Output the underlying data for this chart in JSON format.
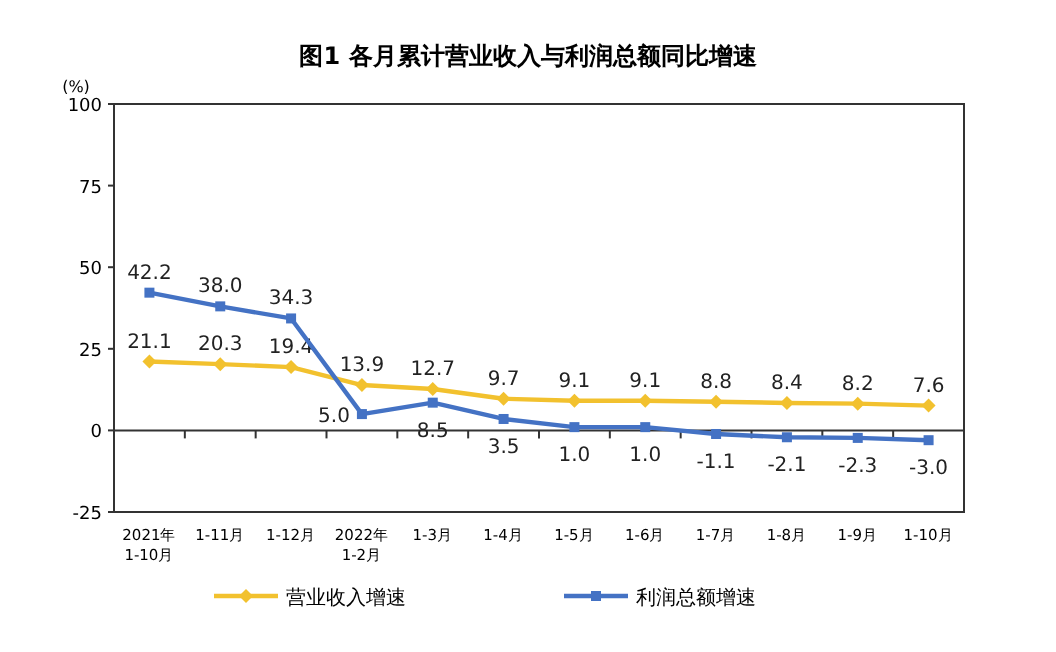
{
  "chart_data": {
    "type": "line",
    "title": "图1  各月累计营业收入与利润总额同比增速",
    "ylabel": "(%)",
    "categories": [
      "2021年\n1-10月",
      "1-11月",
      "1-12月",
      "2022年\n1-2月",
      "1-3月",
      "1-4月",
      "1-5月",
      "1-6月",
      "1-7月",
      "1-8月",
      "1-9月",
      "1-10月"
    ],
    "series": [
      {
        "name": "营业收入增速",
        "color": "#f2c12e",
        "marker": "diamond",
        "values": [
          21.1,
          20.3,
          19.4,
          13.9,
          12.7,
          9.7,
          9.1,
          9.1,
          8.8,
          8.4,
          8.2,
          7.6
        ],
        "value_labels": [
          "21.1",
          "20.3",
          "19.4",
          "13.9",
          "12.7",
          "9.7",
          "9.1",
          "9.1",
          "8.8",
          "8.4",
          "8.2",
          "7.6"
        ]
      },
      {
        "name": "利润总额增速",
        "color": "#4472c4",
        "marker": "square",
        "values": [
          42.2,
          38.0,
          34.3,
          5.0,
          8.5,
          3.5,
          1.0,
          1.0,
          -1.1,
          -2.1,
          -2.3,
          -3.0
        ],
        "value_labels": [
          "42.2",
          "38.0",
          "34.3",
          "5.0",
          "8.5",
          "3.5",
          "1.0",
          "1.0",
          "-1.1",
          "-2.1",
          "-2.3",
          "-3.0"
        ]
      }
    ],
    "ylim": [
      -25,
      100
    ],
    "yticks": [
      -25,
      0,
      25,
      50,
      75,
      100
    ],
    "ref_lines": [
      {
        "axis": "y",
        "value": 0
      }
    ],
    "legend": "bottom",
    "grid": false
  }
}
